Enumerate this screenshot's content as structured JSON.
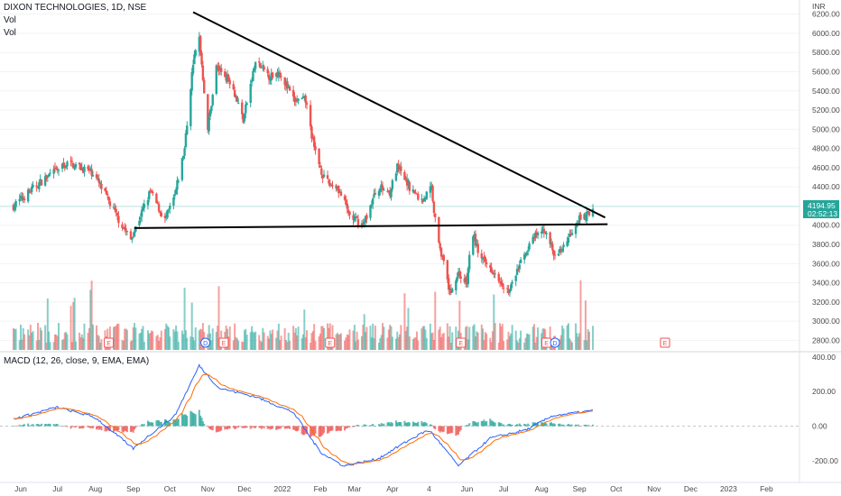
{
  "header": {
    "symbol_title": "DIXON TECHNOLOGIES, 1D, NSE",
    "vol_label_1": "Vol",
    "vol_label_2": "Vol",
    "macd_title": "MACD (12, 26, close, 9, EMA, EMA)"
  },
  "colors": {
    "up": "#26a69a",
    "down": "#ef5350",
    "up_volume": "#26a69a",
    "down_volume": "#ef5350",
    "macd_line": "#2962ff",
    "signal_line": "#ff6d00",
    "price_line": "#26a69a",
    "trendline": "#000000",
    "event_marker": "#ef5350",
    "dividend_marker": "#2962ff"
  },
  "chart_data": [
    {
      "type": "candlestick",
      "currency_label": "INR",
      "ylim": [
        2700,
        6300
      ],
      "y_ticks": [
        "6200.00",
        "6000.00",
        "5800.00",
        "5600.00",
        "5400.00",
        "5200.00",
        "5000.00",
        "4800.00",
        "4600.00",
        "4400.00",
        "4000.00",
        "3800.00",
        "3600.00",
        "3400.00",
        "3200.00",
        "3000.00",
        "2800.00"
      ],
      "last_price": "4194.95",
      "last_price_countdown": "02:52:13",
      "x_ticks": [
        "Jun",
        "Jul",
        "Aug",
        "Sep",
        "Oct",
        "Nov",
        "Dec",
        "2022",
        "Feb",
        "Mar",
        "Apr",
        "4",
        "Jun",
        "Jul",
        "Aug",
        "Sep",
        "Oct",
        "Nov",
        "Dec",
        "2023",
        "Feb"
      ],
      "event_markers": [
        "E",
        "D",
        "E",
        "E",
        "E",
        "E",
        "D",
        "E"
      ],
      "anchor_prices": [
        {
          "date": "2021-05-26",
          "price": 4200
        },
        {
          "date": "2021-06-20",
          "price": 4480
        },
        {
          "date": "2021-07-10",
          "price": 4650
        },
        {
          "date": "2021-07-30",
          "price": 4550
        },
        {
          "date": "2021-08-20",
          "price": 4060
        },
        {
          "date": "2021-08-30",
          "price": 3850
        },
        {
          "date": "2021-09-15",
          "price": 4350
        },
        {
          "date": "2021-09-27",
          "price": 4050
        },
        {
          "date": "2021-10-05",
          "price": 4300
        },
        {
          "date": "2021-10-13",
          "price": 4800
        },
        {
          "date": "2021-10-20",
          "price": 5700
        },
        {
          "date": "2021-10-25",
          "price": 5950
        },
        {
          "date": "2021-11-01",
          "price": 5000
        },
        {
          "date": "2021-11-08",
          "price": 5650
        },
        {
          "date": "2021-11-20",
          "price": 5500
        },
        {
          "date": "2021-11-30",
          "price": 5100
        },
        {
          "date": "2021-12-10",
          "price": 5700
        },
        {
          "date": "2021-12-22",
          "price": 5550
        },
        {
          "date": "2021-12-30",
          "price": 5600
        },
        {
          "date": "2022-01-10",
          "price": 5300
        },
        {
          "date": "2022-01-20",
          "price": 5300
        },
        {
          "date": "2022-01-27",
          "price": 4800
        },
        {
          "date": "2022-02-05",
          "price": 4450
        },
        {
          "date": "2022-02-15",
          "price": 4400
        },
        {
          "date": "2022-02-25",
          "price": 4100
        },
        {
          "date": "2022-03-08",
          "price": 4000
        },
        {
          "date": "2022-03-20",
          "price": 4400
        },
        {
          "date": "2022-03-30",
          "price": 4350
        },
        {
          "date": "2022-04-05",
          "price": 4600
        },
        {
          "date": "2022-04-15",
          "price": 4400
        },
        {
          "date": "2022-04-25",
          "price": 4250
        },
        {
          "date": "2022-05-03",
          "price": 4400
        },
        {
          "date": "2022-05-06",
          "price": 4050
        },
        {
          "date": "2022-05-12",
          "price": 3650
        },
        {
          "date": "2022-05-18",
          "price": 3300
        },
        {
          "date": "2022-05-25",
          "price": 3500
        },
        {
          "date": "2022-06-01",
          "price": 3400
        },
        {
          "date": "2022-06-05",
          "price": 3950
        },
        {
          "date": "2022-06-12",
          "price": 3650
        },
        {
          "date": "2022-06-25",
          "price": 3500
        },
        {
          "date": "2022-07-05",
          "price": 3300
        },
        {
          "date": "2022-07-18",
          "price": 3700
        },
        {
          "date": "2022-07-28",
          "price": 3900
        },
        {
          "date": "2022-08-05",
          "price": 3950
        },
        {
          "date": "2022-08-12",
          "price": 3650
        },
        {
          "date": "2022-08-22",
          "price": 3850
        },
        {
          "date": "2022-08-30",
          "price": 4050
        },
        {
          "date": "2022-09-07",
          "price": 4100
        },
        {
          "date": "2022-09-12",
          "price": 4195
        }
      ],
      "trendlines": [
        {
          "name": "descending",
          "from": {
            "date": "2021-10-20",
            "price": 6220
          },
          "to": {
            "date": "2022-09-22",
            "price": 4080
          }
        },
        {
          "name": "support",
          "from": {
            "date": "2021-09-02",
            "price": 3970
          },
          "to": {
            "date": "2022-09-24",
            "price": 4010
          }
        }
      ],
      "volume_note": "daily volume histogram, green on up days, red on down days"
    },
    {
      "type": "macd",
      "ylim": [
        -300,
        420
      ],
      "y_ticks": [
        "400.00",
        "200.00",
        "0.00",
        "-200.00"
      ],
      "anchor_macd": [
        {
          "date": "2021-05-26",
          "value": 40
        },
        {
          "date": "2021-07-01",
          "value": 110
        },
        {
          "date": "2021-08-01",
          "value": 50
        },
        {
          "date": "2021-09-01",
          "value": -130
        },
        {
          "date": "2021-09-20",
          "value": -20
        },
        {
          "date": "2021-10-05",
          "value": 60
        },
        {
          "date": "2021-10-25",
          "value": 350
        },
        {
          "date": "2021-11-10",
          "value": 220
        },
        {
          "date": "2021-12-10",
          "value": 170
        },
        {
          "date": "2022-01-10",
          "value": 80
        },
        {
          "date": "2022-02-01",
          "value": -150
        },
        {
          "date": "2022-02-20",
          "value": -230
        },
        {
          "date": "2022-03-20",
          "value": -190
        },
        {
          "date": "2022-04-15",
          "value": -80
        },
        {
          "date": "2022-05-01",
          "value": -20
        },
        {
          "date": "2022-05-25",
          "value": -230
        },
        {
          "date": "2022-06-20",
          "value": -70
        },
        {
          "date": "2022-07-20",
          "value": -20
        },
        {
          "date": "2022-08-10",
          "value": 60
        },
        {
          "date": "2022-09-12",
          "value": 90
        }
      ]
    }
  ]
}
